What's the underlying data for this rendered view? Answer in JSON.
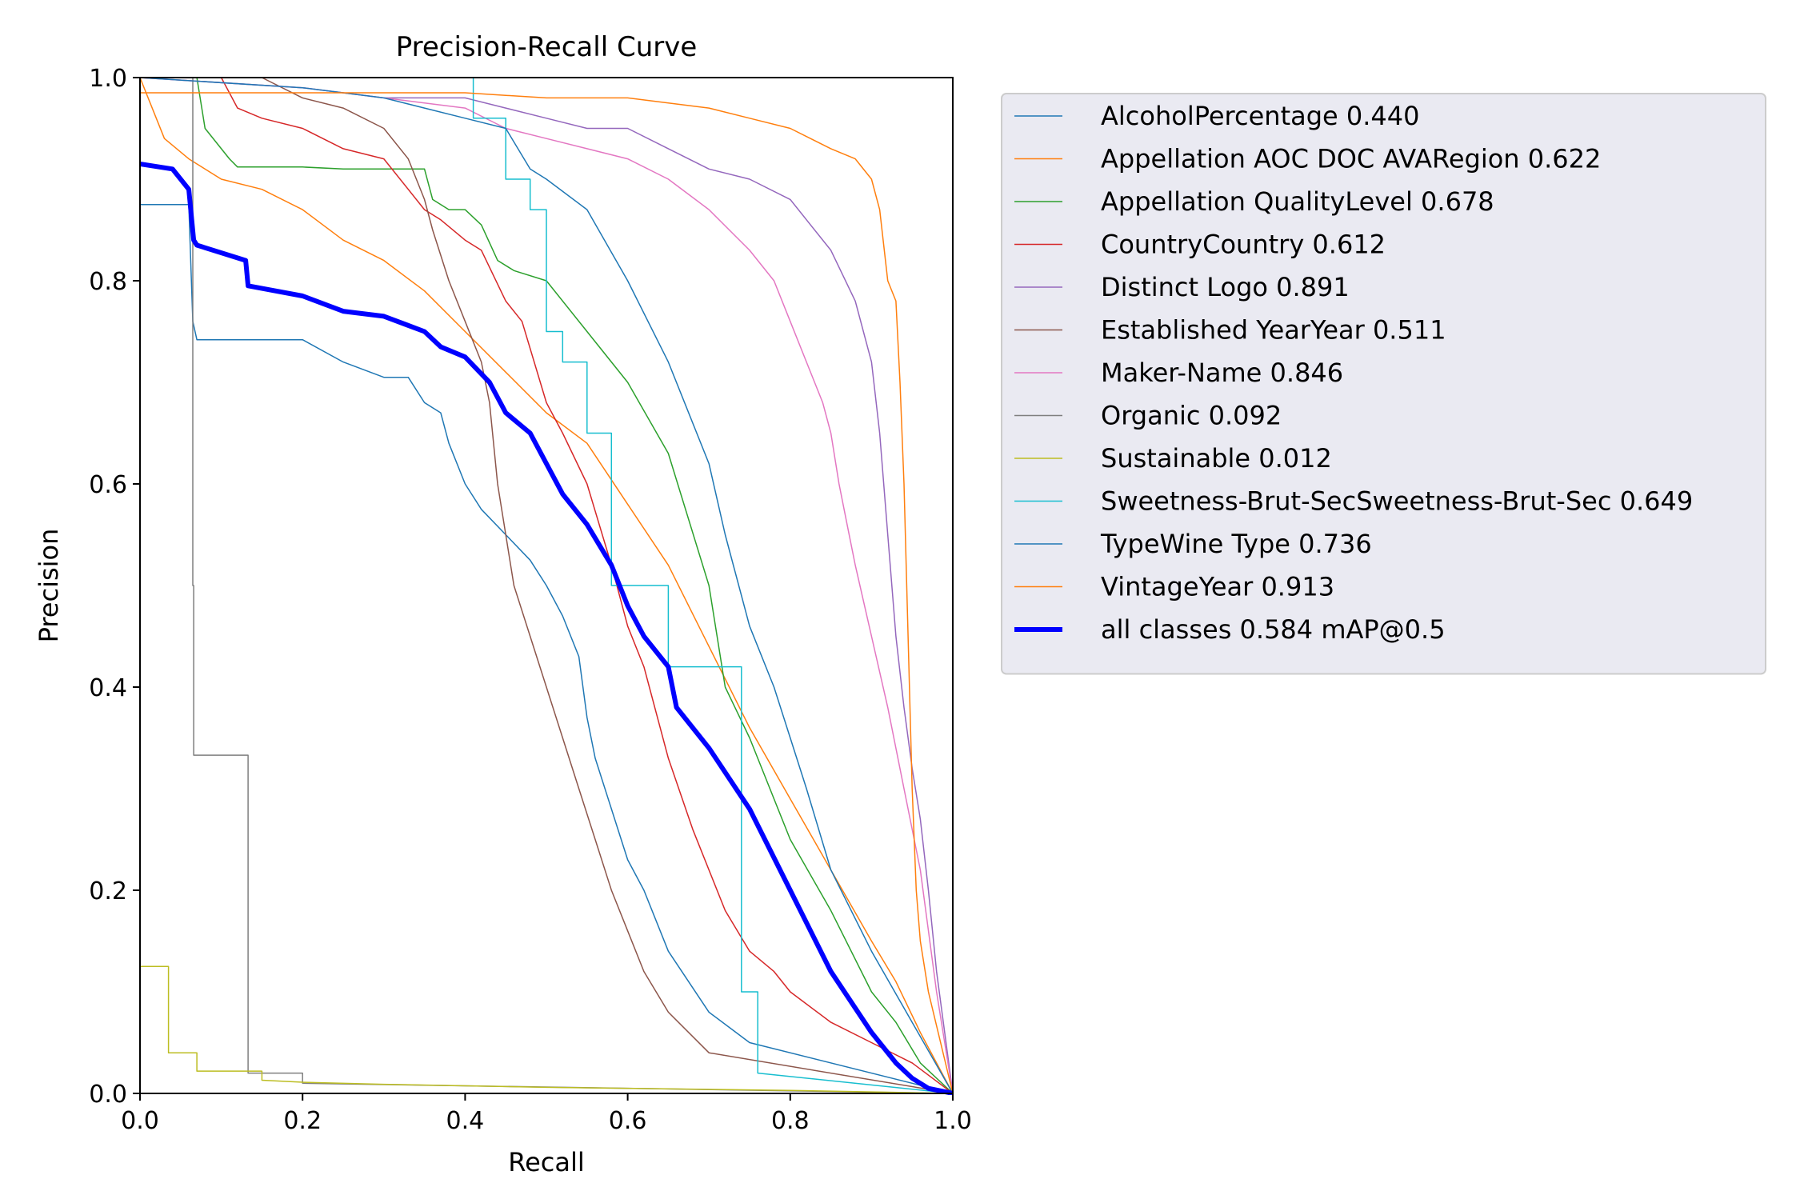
{
  "chart_data": {
    "type": "line",
    "title": "Precision-Recall Curve",
    "xlabel": "Recall",
    "ylabel": "Precision",
    "xlim": [
      0.0,
      1.0
    ],
    "ylim": [
      0.0,
      1.0
    ],
    "xticks": [
      "0.0",
      "0.2",
      "0.4",
      "0.6",
      "0.8",
      "1.0"
    ],
    "yticks": [
      "0.0",
      "0.2",
      "0.4",
      "0.6",
      "0.8",
      "1.0"
    ],
    "grid": false,
    "legend_position": "outside-right",
    "series": [
      {
        "name": "AlcoholPercentage 0.440",
        "color": "#1f77b4",
        "width": 1.5,
        "x": [
          0,
          0.06,
          0.065,
          0.07,
          0.2,
          0.25,
          0.3,
          0.33,
          0.35,
          0.37,
          0.38,
          0.4,
          0.42,
          0.45,
          0.48,
          0.5,
          0.52,
          0.54,
          0.55,
          0.56,
          0.58,
          0.6,
          0.62,
          0.65,
          0.7,
          0.75,
          1.0
        ],
        "y": [
          0.875,
          0.875,
          0.76,
          0.742,
          0.742,
          0.72,
          0.705,
          0.705,
          0.68,
          0.67,
          0.64,
          0.6,
          0.575,
          0.55,
          0.525,
          0.5,
          0.47,
          0.43,
          0.37,
          0.33,
          0.28,
          0.23,
          0.2,
          0.14,
          0.08,
          0.05,
          0.0
        ]
      },
      {
        "name": "Appellation AOC DOC AVARegion 0.622",
        "color": "#ff7f0e",
        "width": 1.5,
        "x": [
          0,
          0.03,
          0.06,
          0.1,
          0.15,
          0.2,
          0.25,
          0.3,
          0.35,
          0.4,
          0.45,
          0.5,
          0.55,
          0.6,
          0.65,
          0.7,
          0.75,
          0.8,
          0.85,
          0.9,
          0.93,
          0.96,
          1.0
        ],
        "y": [
          1.0,
          0.94,
          0.92,
          0.9,
          0.89,
          0.87,
          0.84,
          0.82,
          0.79,
          0.75,
          0.71,
          0.67,
          0.64,
          0.58,
          0.52,
          0.44,
          0.36,
          0.29,
          0.22,
          0.15,
          0.11,
          0.06,
          0.0
        ]
      },
      {
        "name": "Appellation QualityLevel 0.678",
        "color": "#2ca02c",
        "width": 1.5,
        "x": [
          0,
          0.07,
          0.08,
          0.11,
          0.12,
          0.2,
          0.25,
          0.3,
          0.35,
          0.36,
          0.38,
          0.4,
          0.42,
          0.44,
          0.46,
          0.5,
          0.55,
          0.6,
          0.65,
          0.7,
          0.72,
          0.75,
          0.8,
          0.85,
          0.9,
          0.93,
          0.96,
          1.0
        ],
        "y": [
          1.0,
          1.0,
          0.95,
          0.92,
          0.912,
          0.912,
          0.91,
          0.91,
          0.91,
          0.88,
          0.87,
          0.87,
          0.855,
          0.82,
          0.81,
          0.8,
          0.75,
          0.7,
          0.63,
          0.5,
          0.4,
          0.35,
          0.25,
          0.18,
          0.1,
          0.07,
          0.03,
          0.0
        ]
      },
      {
        "name": "CountryCountry 0.612",
        "color": "#d62728",
        "width": 1.5,
        "x": [
          0,
          0.1,
          0.12,
          0.15,
          0.2,
          0.25,
          0.3,
          0.35,
          0.37,
          0.4,
          0.42,
          0.45,
          0.47,
          0.5,
          0.52,
          0.55,
          0.58,
          0.6,
          0.62,
          0.65,
          0.68,
          0.7,
          0.72,
          0.75,
          0.78,
          0.8,
          0.85,
          0.9,
          0.95,
          1.0
        ],
        "y": [
          1.0,
          1.0,
          0.97,
          0.96,
          0.95,
          0.93,
          0.92,
          0.87,
          0.86,
          0.84,
          0.83,
          0.78,
          0.76,
          0.68,
          0.65,
          0.6,
          0.52,
          0.46,
          0.42,
          0.33,
          0.26,
          0.22,
          0.18,
          0.14,
          0.12,
          0.1,
          0.07,
          0.05,
          0.03,
          0.0
        ]
      },
      {
        "name": "Distinct Logo 0.891",
        "color": "#9467bd",
        "width": 1.5,
        "x": [
          0,
          0.2,
          0.3,
          0.4,
          0.45,
          0.5,
          0.55,
          0.6,
          0.65,
          0.7,
          0.75,
          0.8,
          0.85,
          0.88,
          0.9,
          0.91,
          0.92,
          0.93,
          0.94,
          0.95,
          0.96,
          0.97,
          0.98,
          1.0
        ],
        "y": [
          1.0,
          0.99,
          0.98,
          0.98,
          0.97,
          0.96,
          0.95,
          0.95,
          0.93,
          0.91,
          0.9,
          0.88,
          0.83,
          0.78,
          0.72,
          0.65,
          0.55,
          0.45,
          0.38,
          0.32,
          0.27,
          0.2,
          0.12,
          0.0
        ]
      },
      {
        "name": "Established YearYear 0.511",
        "color": "#8c564b",
        "width": 1.5,
        "x": [
          0,
          0.15,
          0.2,
          0.25,
          0.3,
          0.33,
          0.35,
          0.36,
          0.38,
          0.4,
          0.42,
          0.43,
          0.44,
          0.46,
          0.48,
          0.5,
          0.52,
          0.54,
          0.56,
          0.58,
          0.6,
          0.62,
          0.65,
          0.7,
          1.0
        ],
        "y": [
          1.0,
          1.0,
          0.98,
          0.97,
          0.95,
          0.92,
          0.88,
          0.85,
          0.8,
          0.76,
          0.72,
          0.68,
          0.6,
          0.5,
          0.45,
          0.4,
          0.35,
          0.3,
          0.25,
          0.2,
          0.16,
          0.12,
          0.08,
          0.04,
          0.0
        ]
      },
      {
        "name": "Maker-Name 0.846",
        "color": "#e377c2",
        "width": 1.5,
        "x": [
          0,
          0.2,
          0.3,
          0.4,
          0.45,
          0.5,
          0.55,
          0.6,
          0.65,
          0.7,
          0.75,
          0.78,
          0.8,
          0.82,
          0.84,
          0.85,
          0.86,
          0.87,
          0.88,
          0.9,
          0.92,
          0.94,
          0.96,
          0.98,
          1.0
        ],
        "y": [
          1.0,
          0.99,
          0.98,
          0.97,
          0.95,
          0.94,
          0.93,
          0.92,
          0.9,
          0.87,
          0.83,
          0.8,
          0.76,
          0.72,
          0.68,
          0.65,
          0.6,
          0.56,
          0.52,
          0.45,
          0.38,
          0.3,
          0.22,
          0.1,
          0.0
        ]
      },
      {
        "name": "Organic 0.092",
        "color": "#7f7f7f",
        "width": 1.5,
        "x": [
          0,
          0.06,
          0.065,
          0.065,
          0.066,
          0.066,
          0.07,
          0.13,
          0.133,
          0.133,
          0.2,
          0.2,
          1.0
        ],
        "y": [
          1.0,
          1.0,
          1.0,
          0.5,
          0.5,
          0.333,
          0.333,
          0.333,
          0.333,
          0.02,
          0.02,
          0.01,
          0.0
        ]
      },
      {
        "name": "Sustainable 0.012",
        "color": "#bcbd22",
        "width": 1.5,
        "x": [
          0,
          0.035,
          0.035,
          0.07,
          0.07,
          0.15,
          0.15,
          0.2,
          0.3,
          0.5,
          0.8,
          1.0
        ],
        "y": [
          0.125,
          0.125,
          0.04,
          0.04,
          0.022,
          0.022,
          0.013,
          0.011,
          0.009,
          0.006,
          0.003,
          0.0
        ]
      },
      {
        "name": "Sweetness-Brut-SecSweetness-Brut-Sec 0.649",
        "color": "#17becf",
        "width": 1.5,
        "x": [
          0,
          0.41,
          0.41,
          0.45,
          0.45,
          0.48,
          0.48,
          0.5,
          0.5,
          0.52,
          0.52,
          0.55,
          0.55,
          0.58,
          0.58,
          0.65,
          0.65,
          0.74,
          0.74,
          0.76,
          0.76,
          1.0
        ],
        "y": [
          1.0,
          1.0,
          0.96,
          0.96,
          0.9,
          0.9,
          0.87,
          0.87,
          0.75,
          0.75,
          0.72,
          0.72,
          0.65,
          0.65,
          0.5,
          0.5,
          0.42,
          0.42,
          0.1,
          0.1,
          0.02,
          0.0
        ]
      },
      {
        "name": "TypeWine Type 0.736",
        "color": "#1f77b4",
        "width": 1.5,
        "x": [
          0,
          0.2,
          0.3,
          0.35,
          0.4,
          0.45,
          0.48,
          0.5,
          0.55,
          0.6,
          0.65,
          0.7,
          0.72,
          0.75,
          0.78,
          0.8,
          0.82,
          0.85,
          0.9,
          0.95,
          1.0
        ],
        "y": [
          1.0,
          0.99,
          0.98,
          0.97,
          0.96,
          0.95,
          0.91,
          0.9,
          0.87,
          0.8,
          0.72,
          0.62,
          0.55,
          0.46,
          0.4,
          0.35,
          0.3,
          0.22,
          0.14,
          0.07,
          0.0
        ]
      },
      {
        "name": "VintageYear 0.913",
        "color": "#ff7f0e",
        "width": 1.5,
        "x": [
          0,
          0.3,
          0.4,
          0.5,
          0.6,
          0.7,
          0.75,
          0.8,
          0.85,
          0.88,
          0.9,
          0.91,
          0.92,
          0.93,
          0.935,
          0.94,
          0.945,
          0.95,
          0.955,
          0.96,
          0.97,
          1.0
        ],
        "y": [
          0.985,
          0.985,
          0.985,
          0.98,
          0.98,
          0.97,
          0.96,
          0.95,
          0.93,
          0.92,
          0.9,
          0.87,
          0.8,
          0.78,
          0.7,
          0.6,
          0.45,
          0.3,
          0.2,
          0.15,
          0.1,
          0.0
        ]
      },
      {
        "name": "all classes 0.584 mAP@0.5",
        "color": "#0000ff",
        "width": 6,
        "x": [
          0,
          0.04,
          0.06,
          0.066,
          0.07,
          0.13,
          0.133,
          0.2,
          0.25,
          0.3,
          0.35,
          0.37,
          0.4,
          0.43,
          0.45,
          0.48,
          0.5,
          0.52,
          0.55,
          0.58,
          0.6,
          0.62,
          0.65,
          0.66,
          0.7,
          0.75,
          0.8,
          0.85,
          0.9,
          0.93,
          0.95,
          0.97,
          1.0
        ],
        "y": [
          0.915,
          0.91,
          0.89,
          0.84,
          0.835,
          0.82,
          0.795,
          0.785,
          0.77,
          0.765,
          0.75,
          0.735,
          0.725,
          0.7,
          0.67,
          0.65,
          0.62,
          0.59,
          0.56,
          0.52,
          0.48,
          0.45,
          0.42,
          0.38,
          0.34,
          0.28,
          0.2,
          0.12,
          0.06,
          0.03,
          0.015,
          0.005,
          0.0
        ]
      }
    ]
  }
}
